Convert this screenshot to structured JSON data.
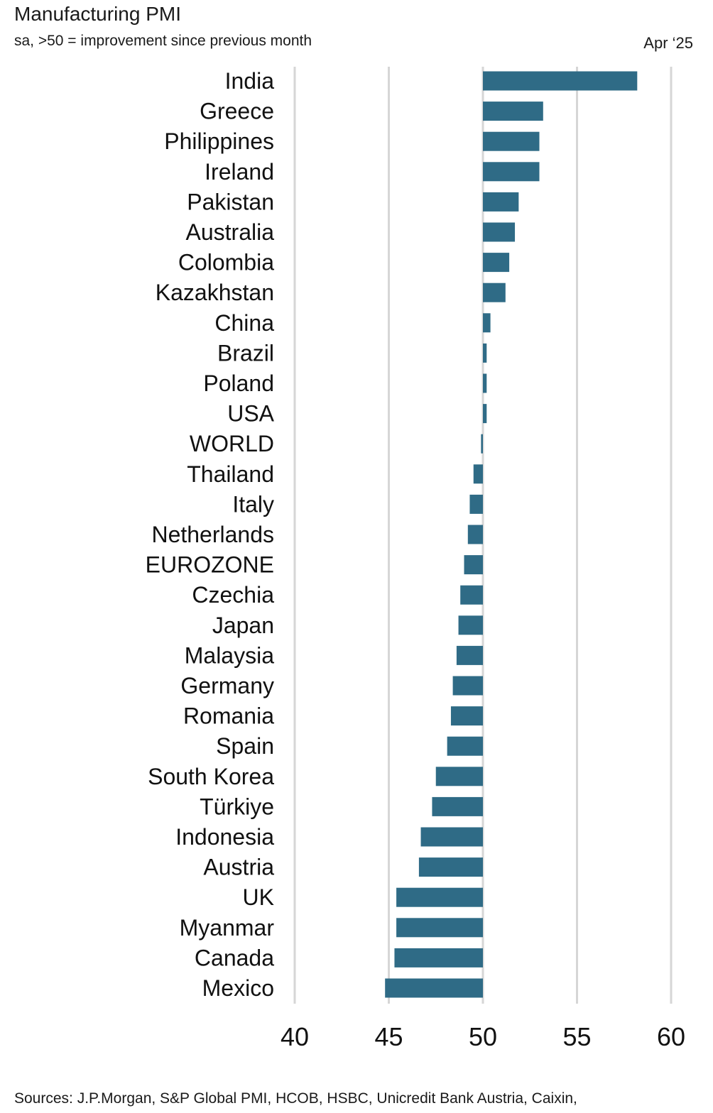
{
  "header": {
    "title": "Manufacturing PMI",
    "subtitle": "sa, >50 = improvement since previous month",
    "date": "Apr ‘25"
  },
  "footer": {
    "sources": "Sources: J.P.Morgan, S&P Global PMI, HCOB, HSBC, Unicredit Bank Austria, Caixin,"
  },
  "colors": {
    "bar": "#2f6b86",
    "grid": "#d6d6d6"
  },
  "chart_data": {
    "type": "bar",
    "orientation": "horizontal",
    "title": "Manufacturing PMI",
    "subtitle": "sa, >50 = improvement since previous month",
    "baseline": 50,
    "xlim": [
      40,
      60
    ],
    "xticks": [
      40,
      45,
      50,
      55,
      60
    ],
    "grid": true,
    "categories": [
      "India",
      "Greece",
      "Philippines",
      "Ireland",
      "Pakistan",
      "Australia",
      "Colombia",
      "Kazakhstan",
      "China",
      "Brazil",
      "Poland",
      "USA",
      "WORLD",
      "Thailand",
      "Italy",
      "Netherlands",
      "EUROZONE",
      "Czechia",
      "Japan",
      "Malaysia",
      "Germany",
      "Romania",
      "Spain",
      "South Korea",
      "Türkiye",
      "Indonesia",
      "Austria",
      "UK",
      "Myanmar",
      "Canada",
      "Mexico"
    ],
    "values": [
      58.2,
      53.2,
      53.0,
      53.0,
      51.9,
      51.7,
      51.4,
      51.2,
      50.4,
      50.2,
      50.2,
      50.2,
      49.9,
      49.5,
      49.3,
      49.2,
      49.0,
      48.8,
      48.7,
      48.6,
      48.4,
      48.3,
      48.1,
      47.5,
      47.3,
      46.7,
      46.6,
      45.4,
      45.4,
      45.3,
      44.8
    ]
  }
}
